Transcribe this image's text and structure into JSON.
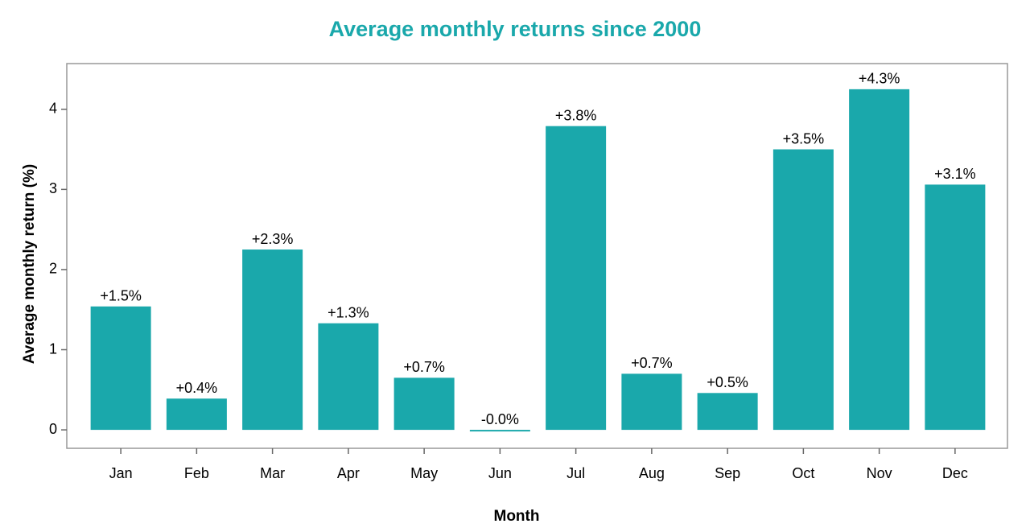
{
  "chart_data": {
    "type": "bar",
    "title": "Average monthly returns since 2000",
    "x_label": "Month",
    "y_label": "Average monthly return (%)",
    "categories": [
      "Jan",
      "Feb",
      "Mar",
      "Apr",
      "May",
      "Jun",
      "Jul",
      "Aug",
      "Sep",
      "Oct",
      "Nov",
      "Dec"
    ],
    "values": [
      1.54,
      0.39,
      2.25,
      1.33,
      0.65,
      -0.02,
      3.79,
      0.7,
      0.46,
      3.5,
      4.25,
      3.06
    ],
    "value_labels": [
      "+1.5%",
      "+0.4%",
      "+2.3%",
      "+1.3%",
      "+0.7%",
      "-0.0%",
      "+3.8%",
      "+0.7%",
      "+0.5%",
      "+3.5%",
      "+4.3%",
      "+3.1%"
    ],
    "color": "#1aa8ab",
    "ylim": [
      -0.23,
      4.57
    ],
    "yticks": [
      0,
      1,
      2,
      3,
      4
    ],
    "grid": false
  }
}
